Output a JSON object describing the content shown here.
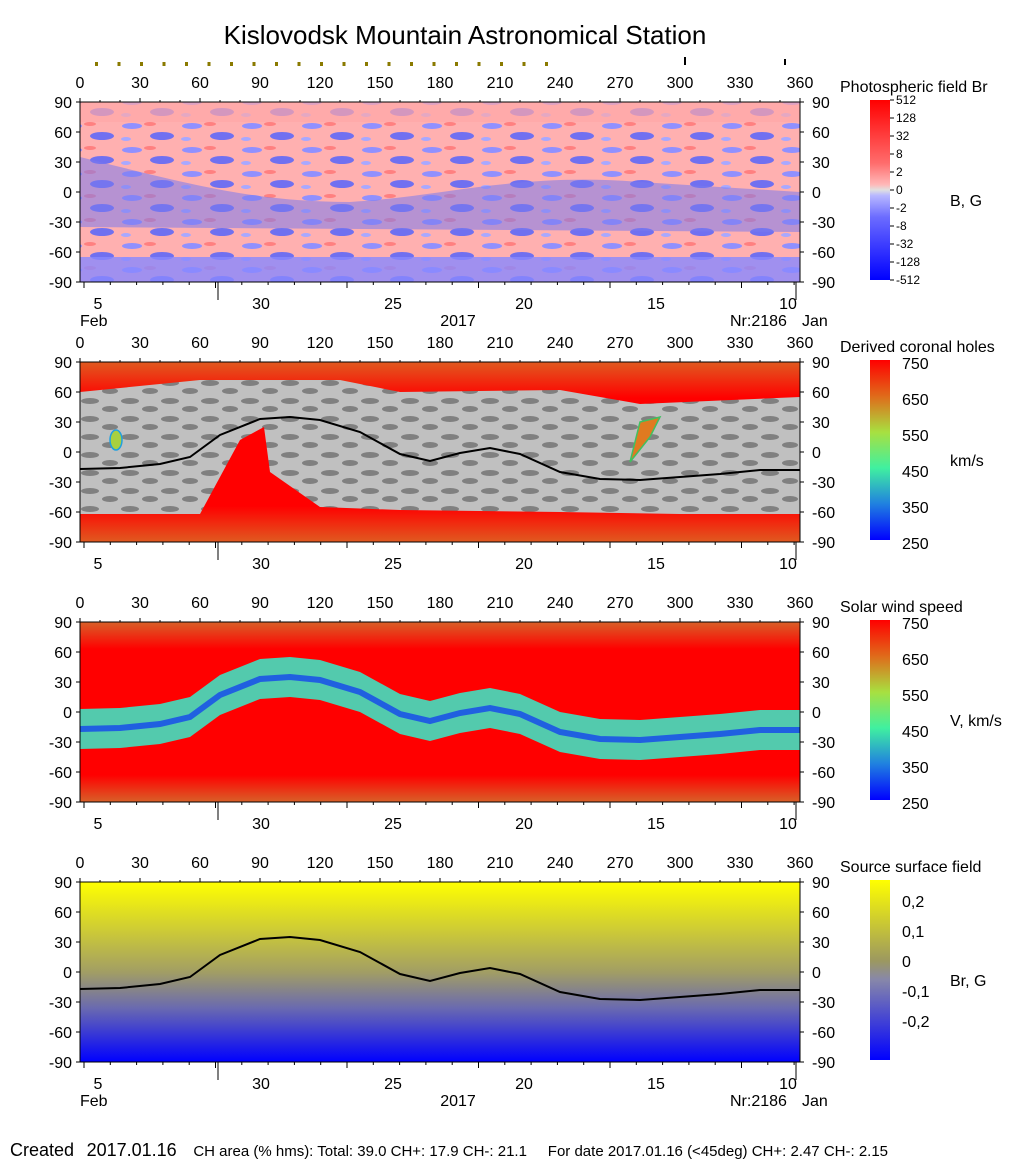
{
  "title": "Kislovodsk Mountain Astronomical Station",
  "common": {
    "longitude_ticks": [
      "0",
      "30",
      "60",
      "90",
      "120",
      "150",
      "180",
      "210",
      "240",
      "270",
      "300",
      "330",
      "360"
    ],
    "latitude_ticks": [
      "90",
      "60",
      "30",
      "0",
      "-30",
      "-60",
      "-90"
    ],
    "date_ticks": [
      "5",
      "30",
      "25",
      "20",
      "15",
      "10"
    ],
    "month_left": "Feb",
    "month_right": "Jan",
    "year": "2017",
    "rotation": "Nr:2186"
  },
  "panels": [
    {
      "id": "photospheric",
      "title": "Photospheric field Br",
      "unit": "B, G",
      "colorbar_labels": [
        "512",
        "128",
        "32",
        "8",
        "2",
        "0",
        "-2",
        "-8",
        "-32",
        "-128",
        "-512"
      ],
      "show_year": true
    },
    {
      "id": "coronal-holes",
      "title": "Derived coronal holes",
      "unit": "km/s",
      "colorbar_labels": [
        "750",
        "650",
        "550",
        "450",
        "350",
        "250"
      ],
      "show_year": false
    },
    {
      "id": "solar-wind",
      "title": "Solar wind speed",
      "unit": "V, km/s",
      "colorbar_labels": [
        "750",
        "650",
        "550",
        "450",
        "350",
        "250"
      ],
      "show_year": false
    },
    {
      "id": "source-surface",
      "title": "Source surface field",
      "unit": "Br, G",
      "colorbar_labels": [
        "0,2",
        "0,1",
        "0",
        "-0,1",
        "-0,2"
      ],
      "show_year": true
    }
  ],
  "footer": {
    "created_label": "Created",
    "created_date": "2017.01.16",
    "ch_area_text": "CH area (% hms): Total: 39.0 CH+: 17.9   CH-: 21.1",
    "for_date_text": "For date 2017.01.16 (<45deg) CH+: 2.47    CH-: 2.15"
  },
  "chart_data": [
    {
      "type": "heatmap",
      "title": "Photospheric field Br",
      "x_range": [
        0,
        360
      ],
      "y_range": [
        -90,
        90
      ],
      "colorbar": {
        "label": "B, G",
        "ticks": [
          512,
          128,
          32,
          8,
          2,
          0,
          -2,
          -8,
          -32,
          -128,
          -512
        ]
      }
    },
    {
      "type": "heatmap",
      "title": "Derived coronal holes",
      "x_range": [
        0,
        360
      ],
      "y_range": [
        -90,
        90
      ],
      "colorbar": {
        "label": "km/s",
        "ticks": [
          750,
          650,
          550,
          450,
          350,
          250
        ]
      },
      "neutral_line": {
        "x": [
          0,
          20,
          40,
          55,
          70,
          90,
          105,
          120,
          140,
          160,
          175,
          190,
          205,
          220,
          240,
          260,
          280,
          300,
          320,
          340,
          360
        ],
        "y": [
          -17,
          -16,
          -12,
          -5,
          17,
          33,
          35,
          32,
          20,
          -2,
          -9,
          -1,
          4,
          -2,
          -20,
          -27,
          -28,
          -25,
          -22,
          -18,
          -18
        ]
      }
    },
    {
      "type": "heatmap",
      "title": "Solar wind speed",
      "x_range": [
        0,
        360
      ],
      "y_range": [
        -90,
        90
      ],
      "colorbar": {
        "label": "V, km/s",
        "ticks": [
          750,
          650,
          550,
          450,
          350,
          250
        ]
      }
    },
    {
      "type": "heatmap",
      "title": "Source surface field",
      "x_range": [
        0,
        360
      ],
      "y_range": [
        -90,
        90
      ],
      "colorbar": {
        "label": "Br, G",
        "ticks": [
          0.2,
          0.1,
          0,
          -0.1,
          -0.2
        ]
      },
      "neutral_line": {
        "x": [
          0,
          20,
          40,
          55,
          70,
          90,
          105,
          120,
          140,
          160,
          175,
          190,
          205,
          220,
          240,
          260,
          280,
          300,
          320,
          340,
          360
        ],
        "y": [
          -17,
          -16,
          -12,
          -5,
          17,
          33,
          35,
          32,
          20,
          -2,
          -9,
          -1,
          4,
          -2,
          -20,
          -27,
          -28,
          -25,
          -22,
          -18,
          -18
        ]
      }
    }
  ],
  "colors": {
    "pos_field": "#ff0000",
    "neg_field": "#0000ff",
    "ch_gray_light": "#c0c0c0",
    "ch_gray_dark": "#808080",
    "ss_positive": "#ffff00",
    "ss_negative": "#0000ff"
  }
}
